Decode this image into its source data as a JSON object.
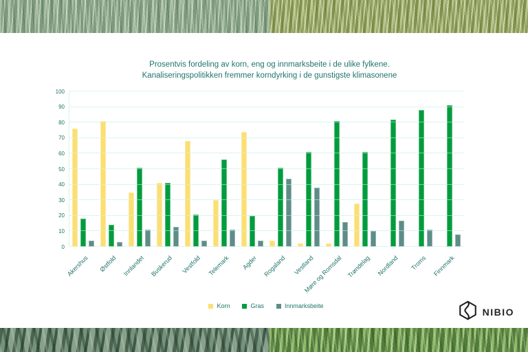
{
  "slide": {
    "title_line1": "Prosentvis fordeling av korn, eng og innmarksbeite i de ulike fylkene.",
    "title_line2": "Kanaliseringspolitikken fremmer korndyrking i de gunstigste klimasonene"
  },
  "chart_data": {
    "type": "bar",
    "title": "Prosentvis fordeling av korn, eng og innmarksbeite i de ulike fylkene. Kanaliseringspolitikken fremmer korndyrking i de gunstigste klimasonene",
    "categories": [
      "Akershus",
      "Østfold",
      "Innlandet",
      "Buskerud",
      "Vestfold",
      "Telemark",
      "Agder",
      "Rogaland",
      "Vestland",
      "Møre og Romsdal",
      "Trøndelag",
      "Nordland",
      "Troms",
      "Finnmark"
    ],
    "series": [
      {
        "name": "Korn",
        "color": "#FBDF73",
        "values": [
          76,
          81,
          35,
          41,
          68,
          30,
          74,
          4,
          2,
          2,
          28,
          0,
          0,
          0
        ]
      },
      {
        "name": "Gras",
        "color": "#009C3D",
        "values": [
          18,
          14,
          51,
          41,
          21,
          56,
          20,
          51,
          61,
          81,
          61,
          82,
          88,
          91
        ]
      },
      {
        "name": "Innmarksbeite",
        "color": "#5E8D88",
        "values": [
          4,
          3,
          11,
          13,
          4,
          11,
          4,
          44,
          38,
          16,
          10,
          17,
          11,
          8
        ]
      }
    ],
    "ylim": [
      0,
      100
    ],
    "yticks": [
      0,
      10,
      20,
      30,
      40,
      50,
      60,
      70,
      80,
      90,
      100
    ],
    "grid": true,
    "legend_position": "bottom",
    "xlabel": "",
    "ylabel": "",
    "axis_text_color": "#20746C",
    "gridline_color": "#D9F4EF"
  },
  "branding": {
    "logo_text": "NIBIO"
  }
}
